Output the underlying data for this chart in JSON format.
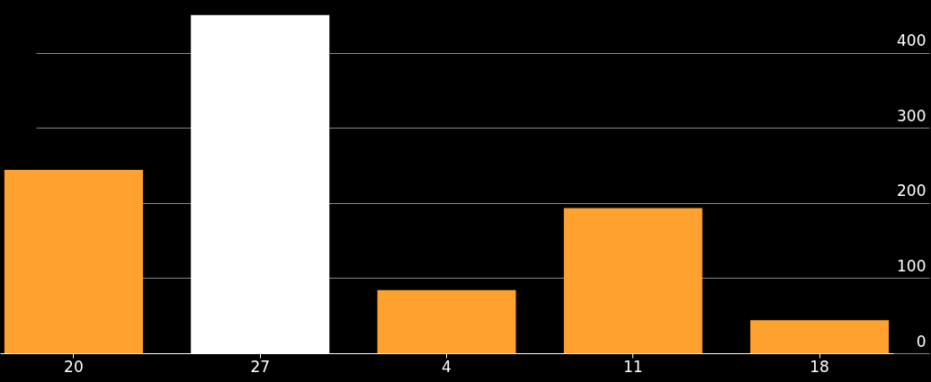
{
  "chart_data": {
    "type": "bar",
    "categories": [
      "20",
      "27",
      "4",
      "11",
      "18"
    ],
    "values": [
      244,
      450,
      84,
      193,
      44
    ],
    "colors": [
      "#ffa12e",
      "#ffffff",
      "#ffa12e",
      "#ffa12e",
      "#ffa12e"
    ],
    "ylim": [
      0,
      470
    ],
    "yticks": [
      0,
      100,
      200,
      300,
      400
    ],
    "grid": "y",
    "legend": false
  }
}
